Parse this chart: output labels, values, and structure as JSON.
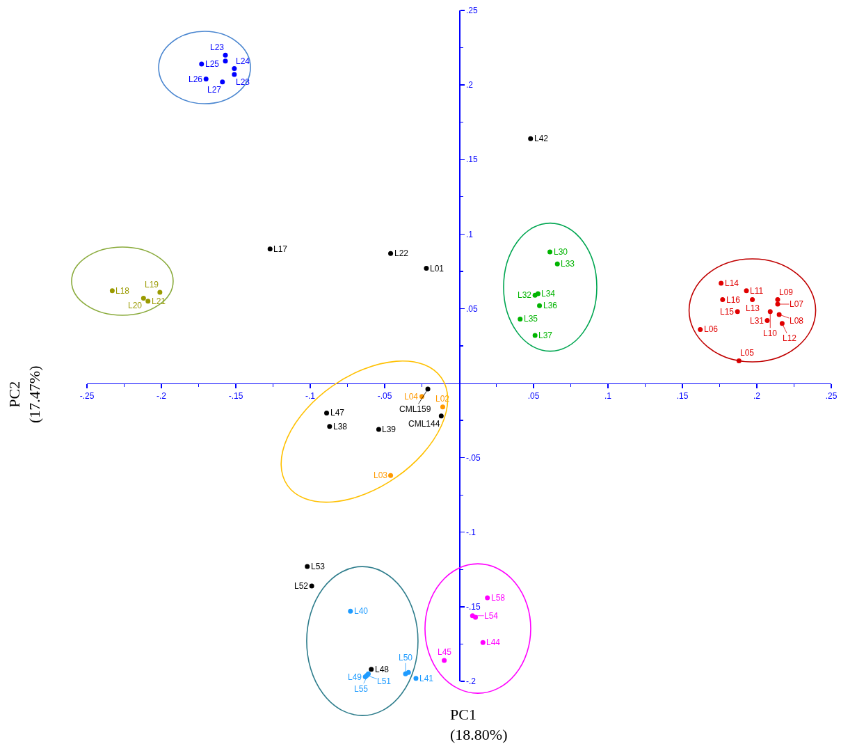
{
  "chart_data": {
    "type": "scatter",
    "xlabel": "PC1\n(18.80%)",
    "ylabel": "PC2\n(17.47%)",
    "xlim": [
      -0.25,
      0.25
    ],
    "ylim": [
      -0.2,
      0.25
    ],
    "xticks": [
      {
        "value": -0.25,
        "label": "-.25"
      },
      {
        "value": -0.225,
        "label": null
      },
      {
        "value": -0.2,
        "label": "-.2"
      },
      {
        "value": -0.175,
        "label": null
      },
      {
        "value": -0.15,
        "label": "-.15"
      },
      {
        "value": -0.125,
        "label": null
      },
      {
        "value": -0.1,
        "label": "-.1"
      },
      {
        "value": -0.075,
        "label": null
      },
      {
        "value": -0.05,
        "label": "-.05"
      },
      {
        "value": -0.025,
        "label": null
      },
      {
        "value": 0.025,
        "label": null
      },
      {
        "value": 0.05,
        "label": ".05"
      },
      {
        "value": 0.075,
        "label": null
      },
      {
        "value": 0.1,
        "label": ".1"
      },
      {
        "value": 0.125,
        "label": null
      },
      {
        "value": 0.15,
        "label": ".15"
      },
      {
        "value": 0.175,
        "label": null
      },
      {
        "value": 0.2,
        "label": ".2"
      },
      {
        "value": 0.225,
        "label": null
      },
      {
        "value": 0.25,
        "label": ".25"
      }
    ],
    "yticks": [
      {
        "value": -0.2,
        "label": "-.2"
      },
      {
        "value": -0.175,
        "label": null
      },
      {
        "value": -0.15,
        "label": "-.15"
      },
      {
        "value": -0.125,
        "label": null
      },
      {
        "value": -0.1,
        "label": "-.1"
      },
      {
        "value": -0.075,
        "label": null
      },
      {
        "value": -0.05,
        "label": "-.05"
      },
      {
        "value": -0.025,
        "label": null
      },
      {
        "value": 0.025,
        "label": null
      },
      {
        "value": 0.05,
        "label": ".05"
      },
      {
        "value": 0.075,
        "label": null
      },
      {
        "value": 0.1,
        "label": ".1"
      },
      {
        "value": 0.125,
        "label": null
      },
      {
        "value": 0.15,
        "label": ".15"
      },
      {
        "value": 0.175,
        "label": null
      },
      {
        "value": 0.2,
        "label": ".2"
      },
      {
        "value": 0.225,
        "label": null
      },
      {
        "value": 0.25,
        "label": ".25"
      }
    ],
    "marker": "circle",
    "series": [
      {
        "color": "#000000",
        "x": [
          0.048,
          -0.127,
          -0.046,
          -0.022,
          -0.021,
          -0.012,
          -0.089,
          -0.087,
          -0.054,
          -0.102,
          -0.099,
          -0.059
        ],
        "values": [
          0.164,
          0.09,
          0.087,
          0.077,
          -0.004,
          -0.022,
          -0.02,
          -0.029,
          -0.031,
          -0.123,
          -0.136,
          -0.192
        ]
      },
      {
        "color": "#0000ff",
        "x": [
          -0.157,
          -0.157,
          -0.151,
          -0.173,
          -0.17,
          -0.159,
          -0.151
        ],
        "values": [
          0.22,
          0.216,
          0.211,
          0.214,
          0.204,
          0.202,
          0.207
        ]
      },
      {
        "color": "#9a9a00",
        "x": [
          -0.233,
          -0.201,
          -0.212,
          -0.209
        ],
        "values": [
          0.062,
          0.061,
          0.057,
          0.055
        ]
      },
      {
        "color": "#00b400",
        "x": [
          0.061,
          0.066,
          0.053,
          0.051,
          0.054,
          0.041,
          0.051
        ],
        "values": [
          0.088,
          0.08,
          0.06,
          0.059,
          0.052,
          0.043,
          0.032
        ]
      },
      {
        "color": "#e00000",
        "x": [
          0.176,
          0.193,
          0.177,
          0.197,
          0.214,
          0.214,
          0.187,
          0.209,
          0.215,
          0.207,
          0.217,
          0.162,
          0.188
        ],
        "values": [
          0.067,
          0.062,
          0.056,
          0.056,
          0.056,
          0.053,
          0.048,
          0.048,
          0.046,
          0.042,
          0.04,
          0.036,
          0.015
        ]
      },
      {
        "color": "#ff9900",
        "x": [
          -0.025,
          -0.011,
          -0.046
        ],
        "values": [
          -0.009,
          -0.016,
          -0.062
        ]
      },
      {
        "color": "#1e9bff",
        "x": [
          -0.073,
          -0.063,
          -0.062,
          -0.061,
          -0.036,
          -0.034,
          -0.029
        ],
        "values": [
          -0.153,
          -0.197,
          -0.196,
          -0.195,
          -0.195,
          -0.194,
          -0.198
        ]
      },
      {
        "color": "#ff00ff",
        "x": [
          0.019,
          0.009,
          0.011,
          0.016,
          -0.01
        ],
        "values": [
          -0.144,
          -0.156,
          -0.157,
          -0.174,
          -0.186
        ]
      }
    ],
    "annotations": [
      {
        "text": "L42",
        "x": 0.048,
        "y": 0.164
      },
      {
        "text": "L17",
        "x": -0.127,
        "y": 0.09
      },
      {
        "text": "L22",
        "x": -0.046,
        "y": 0.087
      },
      {
        "text": "L01",
        "x": -0.022,
        "y": 0.077
      },
      {
        "text": "CML159",
        "x": -0.021,
        "y": -0.004
      },
      {
        "text": "CML144",
        "x": -0.012,
        "y": -0.022
      },
      {
        "text": "L47",
        "x": -0.089,
        "y": -0.02
      },
      {
        "text": "L38",
        "x": -0.087,
        "y": -0.029
      },
      {
        "text": "L39",
        "x": -0.054,
        "y": -0.031
      },
      {
        "text": "L53",
        "x": -0.102,
        "y": -0.123
      },
      {
        "text": "L52",
        "x": -0.099,
        "y": -0.136
      },
      {
        "text": "L48",
        "x": -0.059,
        "y": -0.192
      },
      {
        "text": "L23",
        "x": -0.157,
        "y": 0.22
      },
      {
        "text": "L24",
        "x": -0.151,
        "y": 0.211
      },
      {
        "text": "L25",
        "x": -0.173,
        "y": 0.214
      },
      {
        "text": "L26",
        "x": -0.17,
        "y": 0.204
      },
      {
        "text": "L27",
        "x": -0.159,
        "y": 0.202
      },
      {
        "text": "L28",
        "x": -0.151,
        "y": 0.207
      },
      {
        "text": "L18",
        "x": -0.233,
        "y": 0.062
      },
      {
        "text": "L19",
        "x": -0.201,
        "y": 0.061
      },
      {
        "text": "L20",
        "x": -0.212,
        "y": 0.057
      },
      {
        "text": "L21",
        "x": -0.209,
        "y": 0.055
      },
      {
        "text": "L30",
        "x": 0.061,
        "y": 0.088
      },
      {
        "text": "L33",
        "x": 0.066,
        "y": 0.08
      },
      {
        "text": "L34",
        "x": 0.053,
        "y": 0.06
      },
      {
        "text": "L32",
        "x": 0.051,
        "y": 0.059
      },
      {
        "text": "L36",
        "x": 0.054,
        "y": 0.052
      },
      {
        "text": "L35",
        "x": 0.041,
        "y": 0.043
      },
      {
        "text": "L37",
        "x": 0.051,
        "y": 0.032
      },
      {
        "text": "L14",
        "x": 0.176,
        "y": 0.067
      },
      {
        "text": "L11",
        "x": 0.193,
        "y": 0.062
      },
      {
        "text": "L16",
        "x": 0.177,
        "y": 0.056
      },
      {
        "text": "L13",
        "x": 0.197,
        "y": 0.056
      },
      {
        "text": "L09",
        "x": 0.214,
        "y": 0.056
      },
      {
        "text": "L07",
        "x": 0.214,
        "y": 0.053
      },
      {
        "text": "L15",
        "x": 0.187,
        "y": 0.048
      },
      {
        "text": "L10",
        "x": 0.209,
        "y": 0.048
      },
      {
        "text": "L08",
        "x": 0.215,
        "y": 0.046
      },
      {
        "text": "L31",
        "x": 0.207,
        "y": 0.042
      },
      {
        "text": "L12",
        "x": 0.217,
        "y": 0.04
      },
      {
        "text": "L06",
        "x": 0.162,
        "y": 0.036
      },
      {
        "text": "L05",
        "x": 0.188,
        "y": 0.015
      },
      {
        "text": "L04",
        "x": -0.025,
        "y": -0.009
      },
      {
        "text": "L02",
        "x": -0.011,
        "y": -0.016
      },
      {
        "text": "L03",
        "x": -0.046,
        "y": -0.062
      },
      {
        "text": "L40",
        "x": -0.073,
        "y": -0.153
      },
      {
        "text": "L49",
        "x": -0.063,
        "y": -0.197
      },
      {
        "text": "L51",
        "x": -0.062,
        "y": -0.196
      },
      {
        "text": "L55",
        "x": -0.061,
        "y": -0.195
      },
      {
        "text": "L50",
        "x": -0.036,
        "y": -0.195
      },
      {
        "text": "L41",
        "x": -0.029,
        "y": -0.198
      },
      {
        "text": "L58",
        "x": 0.019,
        "y": -0.144
      },
      {
        "text": "L54",
        "x": 0.009,
        "y": -0.156
      },
      {
        "text": "L44",
        "x": 0.016,
        "y": -0.174
      },
      {
        "text": "L45",
        "x": -0.01,
        "y": -0.186
      }
    ]
  }
}
